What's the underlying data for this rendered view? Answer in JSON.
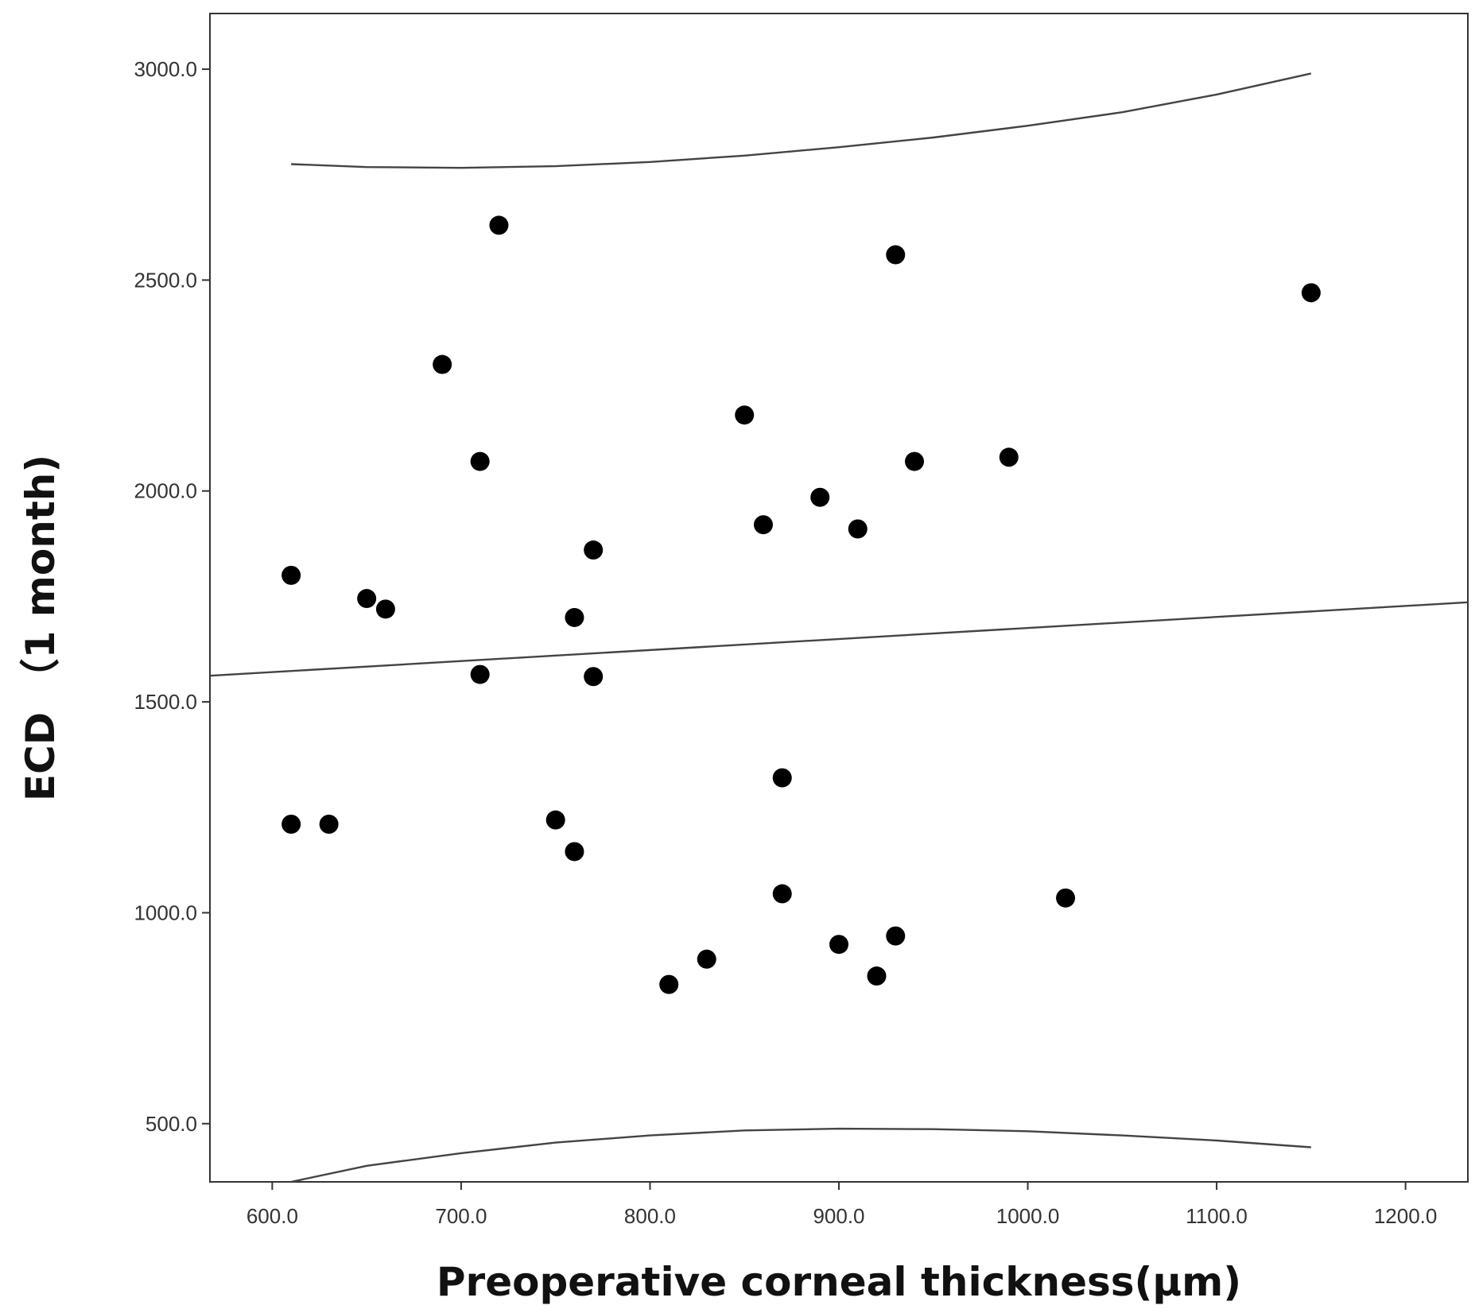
{
  "chart_data": {
    "type": "scatter",
    "xlabel": "Preoperative corneal thickness(μm)",
    "ylabel": "ECD （1 month)",
    "xlim": [
      567,
      1233
    ],
    "ylim": [
      362,
      3132
    ],
    "x_ticks": [
      600,
      700,
      800,
      900,
      1000,
      1100,
      1200
    ],
    "x_tick_labels": [
      "600.0",
      "700.0",
      "800.0",
      "900.0",
      "1000.0",
      "1100.0",
      "1200.0"
    ],
    "y_ticks": [
      500,
      1000,
      1500,
      2000,
      2500,
      3000
    ],
    "y_tick_labels": [
      "500.0",
      "1000.0",
      "1500.0",
      "2000.0",
      "2500.0",
      "3000.0"
    ],
    "grid": false,
    "points": {
      "x": [
        610,
        610,
        630,
        650,
        660,
        690,
        710,
        710,
        720,
        750,
        760,
        760,
        770,
        770,
        810,
        830,
        850,
        860,
        870,
        870,
        890,
        900,
        910,
        920,
        930,
        930,
        940,
        990,
        1020,
        1150
      ],
      "y": [
        1800,
        1210,
        1210,
        1745,
        1720,
        2300,
        2070,
        1565,
        2630,
        1220,
        1700,
        1145,
        1860,
        1560,
        830,
        890,
        2180,
        1920,
        1320,
        1045,
        1985,
        925,
        1910,
        850,
        2560,
        945,
        2070,
        2080,
        1035,
        2470
      ],
      "color": "#000000"
    },
    "fit_line": {
      "x": [
        567,
        1233
      ],
      "y": [
        1562,
        1736
      ],
      "color": "#444444"
    },
    "upper_band": {
      "x": [
        610,
        650,
        700,
        750,
        800,
        850,
        900,
        950,
        1000,
        1050,
        1100,
        1150
      ],
      "y": [
        2775,
        2768,
        2766,
        2770,
        2780,
        2795,
        2815,
        2838,
        2866,
        2898,
        2940,
        2990
      ],
      "color": "#444444"
    },
    "lower_band": {
      "x": [
        610,
        650,
        700,
        750,
        800,
        850,
        900,
        950,
        1000,
        1050,
        1100,
        1150
      ],
      "y": [
        362,
        400,
        430,
        455,
        472,
        484,
        488,
        487,
        482,
        472,
        460,
        444
      ],
      "color": "#444444"
    }
  }
}
